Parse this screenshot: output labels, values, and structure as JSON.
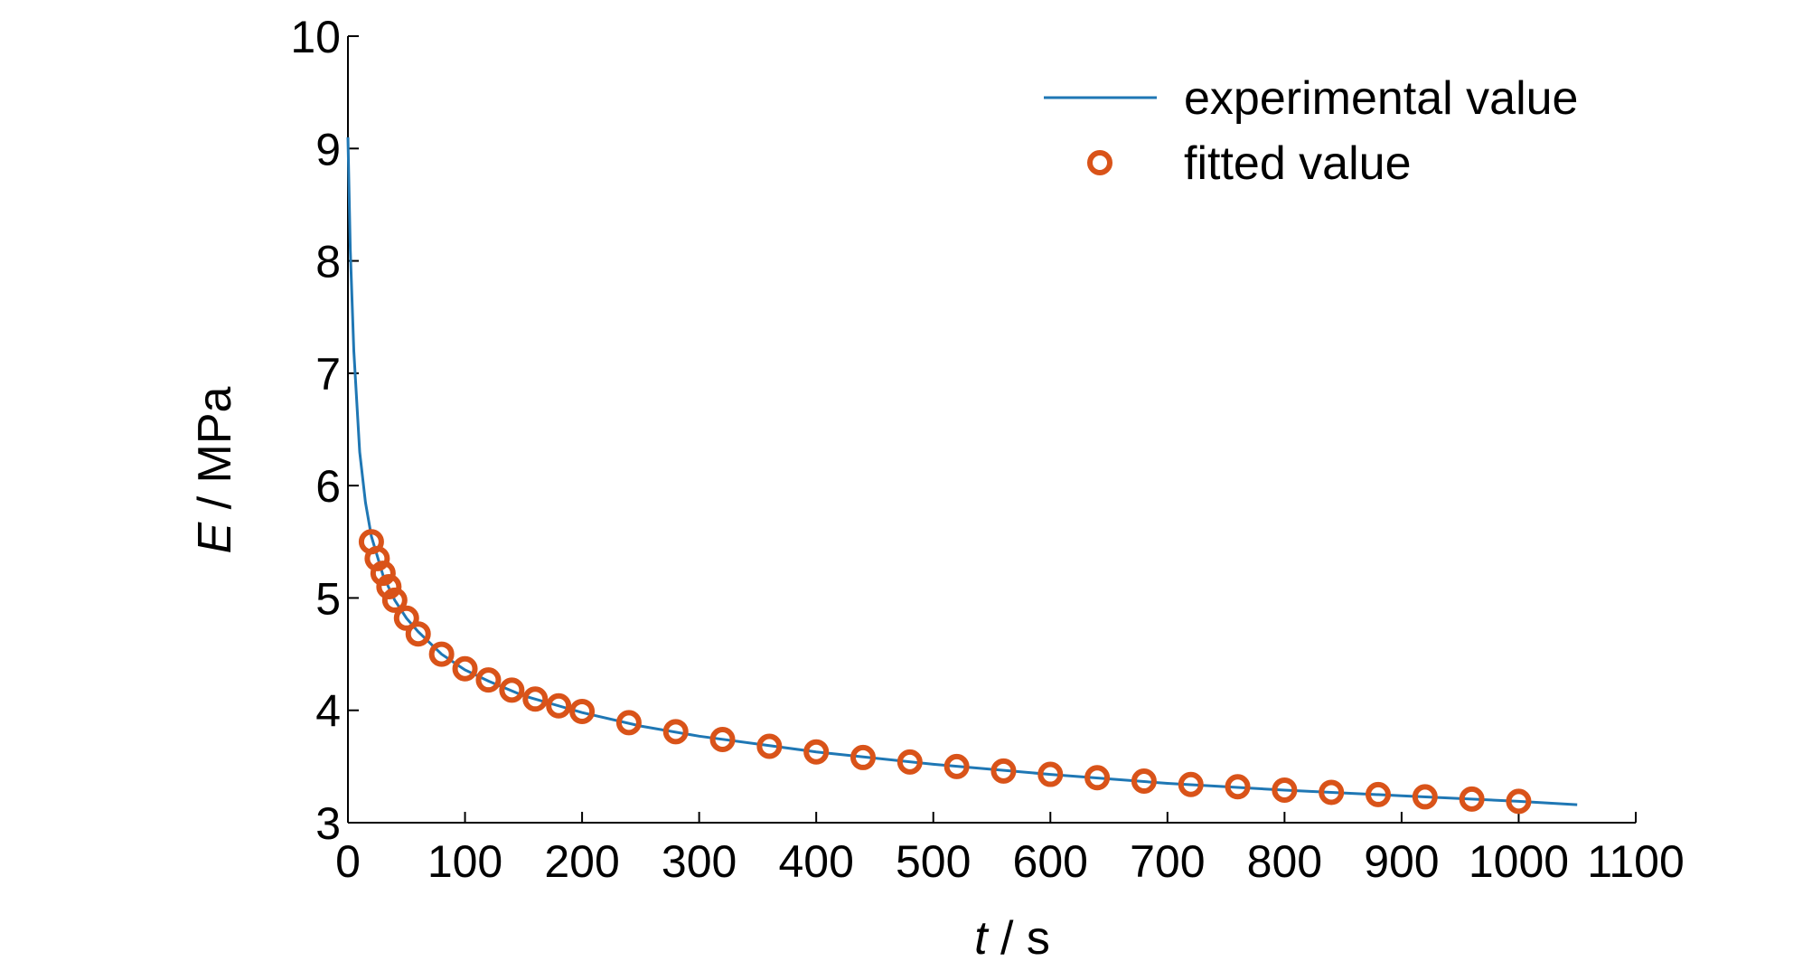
{
  "chart_data": {
    "type": "line",
    "xlabel": {
      "symbol": "t",
      "unit": " / s"
    },
    "ylabel": {
      "symbol": "E",
      "unit": " / MPa"
    },
    "xlim": [
      0,
      1100
    ],
    "ylim": [
      3,
      10
    ],
    "xticks": [
      "0",
      "100",
      "200",
      "300",
      "400",
      "500",
      "600",
      "700",
      "800",
      "900",
      "1000",
      "1100"
    ],
    "yticks": [
      "3",
      "4",
      "5",
      "6",
      "7",
      "8",
      "9",
      "10"
    ],
    "grid": false,
    "legend_position": "top-right",
    "series": [
      {
        "name": "experimental value",
        "style": "line",
        "color": "#1f77b4",
        "x": [
          0,
          2,
          5,
          10,
          15,
          20,
          30,
          40,
          50,
          60,
          80,
          100,
          120,
          150,
          200,
          250,
          300,
          400,
          500,
          600,
          700,
          800,
          900,
          1000,
          1050
        ],
        "y": [
          9.1,
          8.1,
          7.2,
          6.3,
          5.85,
          5.55,
          5.2,
          4.98,
          4.82,
          4.7,
          4.5,
          4.36,
          4.26,
          4.13,
          3.98,
          3.86,
          3.77,
          3.63,
          3.52,
          3.43,
          3.35,
          3.29,
          3.24,
          3.19,
          3.16
        ]
      },
      {
        "name": "fitted value",
        "style": "marker",
        "color": "#d95319",
        "x": [
          20,
          25,
          30,
          35,
          40,
          50,
          60,
          80,
          100,
          120,
          140,
          160,
          180,
          200,
          240,
          280,
          320,
          360,
          400,
          440,
          480,
          520,
          560,
          600,
          640,
          680,
          720,
          760,
          800,
          840,
          880,
          920,
          960,
          1000
        ],
        "y": [
          5.5,
          5.35,
          5.22,
          5.1,
          4.98,
          4.82,
          4.68,
          4.5,
          4.37,
          4.27,
          4.18,
          4.1,
          4.04,
          3.99,
          3.89,
          3.81,
          3.74,
          3.68,
          3.63,
          3.58,
          3.54,
          3.5,
          3.46,
          3.43,
          3.4,
          3.37,
          3.34,
          3.32,
          3.29,
          3.27,
          3.25,
          3.23,
          3.21,
          3.19
        ]
      }
    ]
  }
}
